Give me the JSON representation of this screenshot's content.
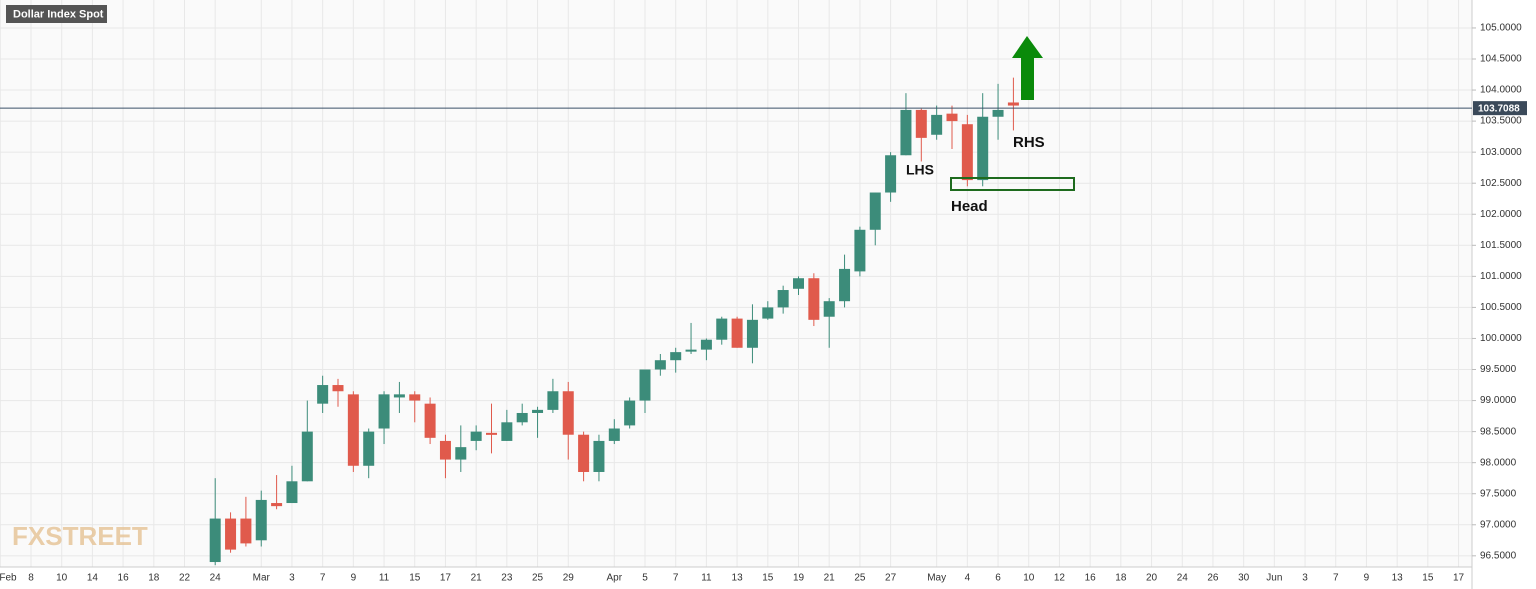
{
  "chart_data": {
    "type": "candlestick",
    "title": "Dollar Index Spot",
    "watermark": "FXSTREET",
    "categories": [
      "Feb",
      null,
      "8",
      null,
      "10",
      null,
      "14",
      null,
      "16",
      null,
      "18",
      null,
      "22",
      null,
      "24",
      null,
      null,
      "Mar",
      null,
      "3",
      null,
      "7",
      null,
      "9",
      null,
      "11",
      null,
      "15",
      null,
      "17",
      null,
      "21",
      null,
      "23",
      null,
      "25",
      null,
      "29",
      null,
      null,
      "Apr",
      null,
      "5",
      null,
      "7",
      null,
      "11",
      null,
      "13",
      null,
      "15",
      null,
      "19",
      null,
      "21",
      null,
      "25",
      null,
      "27",
      null,
      null,
      "May",
      null,
      "4",
      null,
      "6",
      null,
      "10",
      null,
      "12",
      null,
      "16",
      null,
      "18",
      null,
      "20",
      null,
      "24",
      null,
      "26",
      null,
      "30",
      null,
      "Jun",
      null,
      "3",
      null,
      "7",
      null,
      "9",
      null,
      "13",
      null,
      "15",
      null,
      "17"
    ],
    "open": [
      null,
      null,
      null,
      null,
      null,
      null,
      null,
      null,
      null,
      null,
      null,
      null,
      null,
      null,
      96.4,
      97.1,
      97.1,
      96.75,
      97.35,
      97.35,
      97.7,
      98.95,
      99.25,
      99.1,
      97.95,
      98.55,
      99.05,
      99.1,
      98.95,
      98.35,
      98.05,
      98.35,
      98.48,
      98.35,
      98.65,
      98.8,
      98.85,
      99.15,
      98.45,
      97.85,
      98.35,
      98.6,
      99.0,
      99.5,
      99.65,
      99.8,
      99.82,
      99.98,
      100.32,
      99.85,
      100.32,
      100.5,
      100.8,
      100.97,
      100.35,
      100.6,
      101.08,
      101.75,
      102.35,
      102.95,
      103.68,
      103.28,
      103.62,
      103.45,
      102.55,
      103.57,
      103.8,
      null,
      null,
      null,
      null,
      null,
      null,
      null,
      null,
      null,
      null,
      null,
      null,
      null,
      null,
      null,
      null,
      null,
      null,
      null,
      null,
      null,
      null,
      null,
      null,
      null,
      null,
      null,
      null,
      null
    ],
    "high": [
      null,
      null,
      null,
      null,
      null,
      null,
      null,
      null,
      null,
      null,
      null,
      null,
      null,
      null,
      97.75,
      97.2,
      97.45,
      97.55,
      97.8,
      97.95,
      99.0,
      99.4,
      99.35,
      99.15,
      98.55,
      99.15,
      99.3,
      99.15,
      99.05,
      98.45,
      98.6,
      98.6,
      98.95,
      98.85,
      98.95,
      98.9,
      99.35,
      99.3,
      98.5,
      98.45,
      98.7,
      99.05,
      99.5,
      99.75,
      99.85,
      100.25,
      100.0,
      100.35,
      100.35,
      100.55,
      100.6,
      100.85,
      101.0,
      101.05,
      100.65,
      101.35,
      101.8,
      102.35,
      103.0,
      103.95,
      103.7,
      103.75,
      103.75,
      103.6,
      103.95,
      104.1,
      104.2,
      null,
      null,
      null,
      null,
      null,
      null,
      null,
      null,
      null,
      null,
      null,
      null,
      null,
      null,
      null,
      null,
      null,
      null,
      null,
      null,
      null,
      null,
      null,
      null,
      null,
      null,
      null,
      null,
      null
    ],
    "low": [
      null,
      null,
      null,
      null,
      null,
      null,
      null,
      null,
      null,
      null,
      null,
      null,
      null,
      null,
      96.35,
      96.55,
      96.65,
      96.65,
      97.25,
      97.35,
      97.7,
      98.8,
      98.9,
      97.85,
      97.75,
      98.3,
      98.8,
      98.65,
      98.3,
      97.75,
      97.85,
      98.2,
      98.15,
      98.35,
      98.6,
      98.4,
      98.8,
      98.05,
      97.7,
      97.7,
      98.3,
      98.55,
      98.8,
      99.4,
      99.45,
      99.75,
      99.65,
      99.9,
      99.85,
      99.6,
      100.3,
      100.4,
      100.7,
      100.2,
      99.85,
      100.5,
      101.0,
      101.5,
      102.2,
      102.95,
      102.85,
      103.2,
      103.05,
      102.45,
      102.45,
      103.2,
      103.35,
      null,
      null,
      null,
      null,
      null,
      null,
      null,
      null,
      null,
      null,
      null,
      null,
      null,
      null,
      null,
      null,
      null,
      null,
      null,
      null,
      null,
      null,
      null,
      null,
      null,
      null,
      null,
      null,
      null
    ],
    "close": [
      null,
      null,
      null,
      null,
      null,
      null,
      null,
      null,
      null,
      null,
      null,
      null,
      null,
      null,
      97.1,
      96.6,
      96.7,
      97.4,
      97.3,
      97.7,
      98.5,
      99.25,
      99.15,
      97.95,
      98.5,
      99.1,
      99.1,
      99.0,
      98.4,
      98.05,
      98.25,
      98.5,
      98.45,
      98.65,
      98.8,
      98.85,
      99.15,
      98.45,
      97.85,
      98.35,
      98.55,
      99.0,
      99.5,
      99.65,
      99.78,
      99.82,
      99.98,
      100.32,
      99.85,
      100.3,
      100.5,
      100.78,
      100.97,
      100.3,
      100.6,
      101.12,
      101.75,
      102.35,
      102.95,
      103.68,
      103.23,
      103.6,
      103.5,
      102.55,
      103.57,
      103.68,
      103.75,
      null,
      null,
      null,
      null,
      null,
      null,
      null,
      null,
      null,
      null,
      null,
      null,
      null,
      null,
      null,
      null,
      null,
      null,
      null,
      null,
      null,
      null,
      null,
      null,
      null,
      null,
      null,
      null,
      null
    ],
    "up_color": "#3c8c7a",
    "down_color": "#e05a4c",
    "current_price": {
      "value": 103.7088,
      "label": "103.7088"
    },
    "annotations": [
      "LHS",
      "Head",
      "RHS"
    ],
    "ylim": [
      96.32,
      105.45
    ],
    "yticks": [
      {
        "value": 96.5,
        "label": "96.5000"
      },
      {
        "value": 97.0,
        "label": "97.0000"
      },
      {
        "value": 97.5,
        "label": "97.5000"
      },
      {
        "value": 98.0,
        "label": "98.0000"
      },
      {
        "value": 98.5,
        "label": "98.5000"
      },
      {
        "value": 99.0,
        "label": "99.0000"
      },
      {
        "value": 99.5,
        "label": "99.5000"
      },
      {
        "value": 100.0,
        "label": "100.0000"
      },
      {
        "value": 100.5,
        "label": "100.5000"
      },
      {
        "value": 101.0,
        "label": "101.0000"
      },
      {
        "value": 101.5,
        "label": "101.5000"
      },
      {
        "value": 102.0,
        "label": "102.0000"
      },
      {
        "value": 102.5,
        "label": "102.5000"
      },
      {
        "value": 103.0,
        "label": "103.0000"
      },
      {
        "value": 103.5,
        "label": "103.5000"
      },
      {
        "value": 104.0,
        "label": "104.0000"
      },
      {
        "value": 104.5,
        "label": "104.5000"
      },
      {
        "value": 105.0,
        "label": "105.0000"
      }
    ],
    "grid": true
  }
}
